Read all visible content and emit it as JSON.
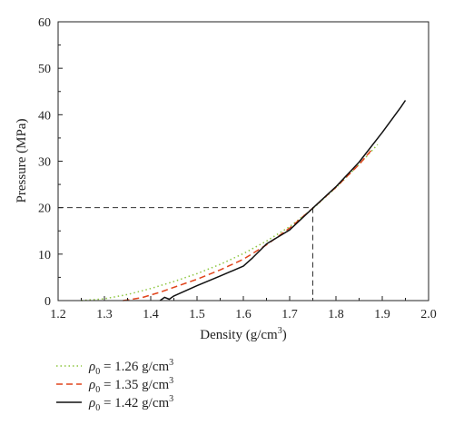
{
  "chart_data": {
    "type": "line",
    "xlabel": "Density (g/cm³)",
    "ylabel": "Pressure (MPa)",
    "xlim": [
      1.2,
      2.0
    ],
    "ylim": [
      0,
      60
    ],
    "xticks": [
      1.2,
      1.3,
      1.4,
      1.5,
      1.6,
      1.7,
      1.8,
      1.9,
      2.0
    ],
    "yticks": [
      0,
      10,
      20,
      30,
      40,
      50,
      60
    ],
    "grid": false,
    "legend_position": "bottom-left, below plot",
    "series": [
      {
        "name": "ρ₀ = 1.26 g/cm³",
        "style": "dotted",
        "color": "#8dc63f",
        "x": [
          1.25,
          1.3,
          1.35,
          1.4,
          1.45,
          1.5,
          1.55,
          1.6,
          1.65,
          1.7,
          1.75,
          1.8,
          1.85,
          1.89
        ],
        "y": [
          0,
          0.4,
          1.3,
          2.6,
          4.1,
          5.8,
          7.8,
          10.1,
          12.8,
          15.9,
          19.8,
          24.3,
          29.3,
          33.6
        ]
      },
      {
        "name": "ρ₀ = 1.35 g/cm³",
        "style": "dashed",
        "color": "#e0441b",
        "x": [
          1.34,
          1.38,
          1.42,
          1.46,
          1.5,
          1.55,
          1.6,
          1.65,
          1.7,
          1.75,
          1.8,
          1.85,
          1.88
        ],
        "y": [
          0,
          0.6,
          1.8,
          3.2,
          4.6,
          6.6,
          8.9,
          12.0,
          15.6,
          19.9,
          24.4,
          29.3,
          32.8
        ]
      },
      {
        "name": "ρ₀ = 1.42 g/cm³",
        "style": "solid",
        "color": "#111111",
        "x": [
          1.42,
          1.43,
          1.44,
          1.45,
          1.5,
          1.55,
          1.6,
          1.62,
          1.65,
          1.7,
          1.75,
          1.8,
          1.85,
          1.9,
          1.94,
          1.95
        ],
        "y": [
          0,
          0.7,
          0.3,
          1.0,
          3.2,
          5.3,
          7.4,
          9.2,
          12.2,
          15.2,
          19.9,
          24.5,
          29.8,
          36.2,
          41.6,
          43.1
        ]
      }
    ],
    "annotation": {
      "style": "dashed-guide",
      "color": "#333333",
      "x": 1.75,
      "y": 20
    }
  },
  "legend": {
    "items": [
      {
        "symbol": "ρ",
        "sub": "0",
        "eq": " = 1.26 g/cm",
        "sup": "3"
      },
      {
        "symbol": "ρ",
        "sub": "0",
        "eq": " = 1.35 g/cm",
        "sup": "3"
      },
      {
        "symbol": "ρ",
        "sub": "0",
        "eq": " = 1.42 g/cm",
        "sup": "3"
      }
    ]
  },
  "axes": {
    "x_title_main": "Density (g/cm",
    "x_title_sup": "3",
    "x_title_close": ")",
    "y_title": "Pressure (MPa)"
  }
}
